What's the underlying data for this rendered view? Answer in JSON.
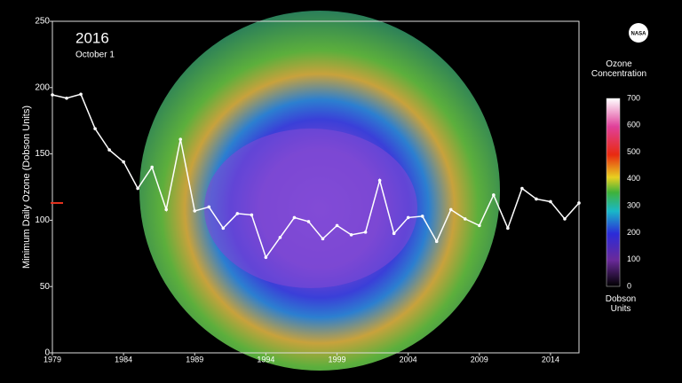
{
  "chart_data": {
    "type": "line",
    "title": "2016",
    "subtitle": "October 1",
    "y_label": "Minimum Daily Ozone (Dobson Units)",
    "x": [
      1979,
      1980,
      1981,
      1982,
      1983,
      1984,
      1985,
      1986,
      1987,
      1988,
      1989,
      1990,
      1991,
      1992,
      1993,
      1994,
      1995,
      1996,
      1997,
      1998,
      1999,
      2000,
      2001,
      2002,
      2003,
      2004,
      2005,
      2006,
      2007,
      2008,
      2009,
      2010,
      2011,
      2012,
      2013,
      2014,
      2015,
      2016
    ],
    "series": [
      {
        "color": "#ffffff",
        "values": [
          194.5,
          192,
          195,
          169,
          153,
          144,
          124,
          140,
          108,
          161,
          107,
          110,
          94,
          105,
          104,
          72,
          87,
          102,
          99,
          86,
          96,
          89,
          91,
          130,
          90,
          102,
          103,
          84,
          108,
          101,
          96,
          119,
          94,
          124,
          116,
          114,
          101,
          113
        ]
      }
    ],
    "current_marker": {
      "value": 113,
      "color": "#e8321e"
    },
    "xlim": [
      1979,
      2016
    ],
    "xticks": [
      1979,
      1984,
      1989,
      1994,
      1999,
      2004,
      2009,
      2014
    ],
    "ylim": [
      0,
      250
    ],
    "yticks": [
      0,
      50,
      100,
      150,
      200,
      250
    ],
    "colorbar": {
      "title": "Ozone Concentration",
      "unit": "Dobson Units",
      "lim": [
        0,
        700
      ],
      "ticks": [
        0,
        100,
        200,
        300,
        400,
        500,
        600,
        700
      ]
    },
    "logo": "NASA"
  }
}
